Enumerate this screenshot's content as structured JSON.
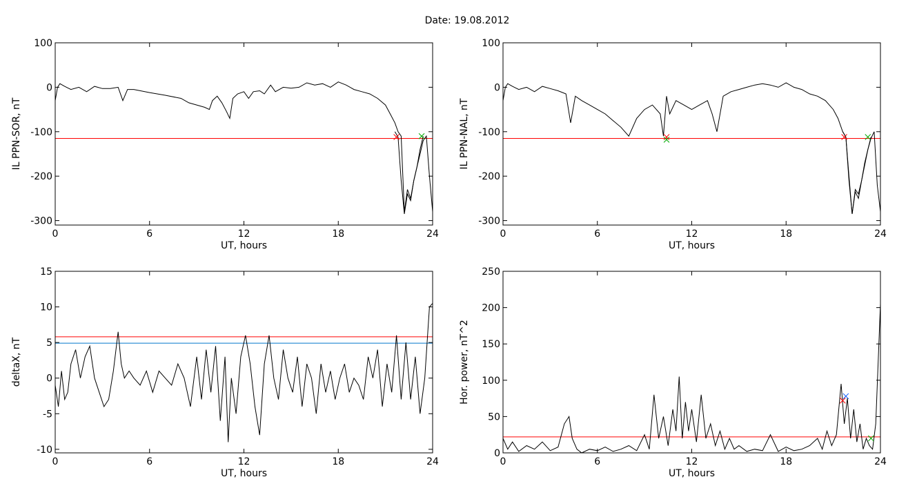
{
  "figure": {
    "title": "Date:  19.08.2012"
  },
  "chart_data": [
    {
      "type": "line",
      "title": "",
      "xlabel": "UT, hours",
      "ylabel": "IL PPN-SOR, nT",
      "xlim": [
        0,
        24
      ],
      "ylim": [
        -310,
        100
      ],
      "xticks": [
        0,
        6,
        12,
        18,
        24
      ],
      "yticks": [
        100,
        0,
        -100,
        -200,
        -300
      ],
      "series": [
        {
          "color": "#000000",
          "x": [
            0,
            0.15,
            0.3,
            0.6,
            1.0,
            1.5,
            2.0,
            2.5,
            3.0,
            3.5,
            4.0,
            4.3,
            4.6,
            5.0,
            6.0,
            7.0,
            8.0,
            8.5,
            9.0,
            9.5,
            9.8,
            10.0,
            10.3,
            10.6,
            10.9,
            11.1,
            11.3,
            11.6,
            12.0,
            12.3,
            12.6,
            13.0,
            13.3,
            13.7,
            14.0,
            14.5,
            15.0,
            15.5,
            16.0,
            16.5,
            17.0,
            17.5,
            18.0,
            18.5,
            19.0,
            19.5,
            20.0,
            20.5,
            21.0,
            21.3,
            21.6,
            21.8,
            22.0,
            22.2,
            22.4,
            22.6,
            22.8,
            23.0,
            23.2,
            23.4,
            23.6,
            23.8,
            24.0
          ],
          "y": [
            -30,
            0,
            8,
            2,
            -5,
            0,
            -10,
            2,
            -3,
            -3,
            0,
            -30,
            -5,
            -5,
            -12,
            -18,
            -25,
            -35,
            -40,
            -45,
            -50,
            -30,
            -20,
            -35,
            -55,
            -70,
            -25,
            -15,
            -10,
            -25,
            -10,
            -8,
            -15,
            5,
            -10,
            0,
            -2,
            0,
            10,
            5,
            8,
            0,
            12,
            5,
            -5,
            -10,
            -15,
            -25,
            -40,
            -60,
            -80,
            -100,
            -110,
            -280,
            -230,
            -250,
            -210,
            -180,
            -150,
            -120,
            -110,
            -200,
            -280
          ]
        },
        {
          "name": "",
          "color": "#0055cc",
          "x": [
            21.6,
            21.8,
            22.0,
            22.2,
            22.4,
            22.6,
            22.8,
            23.0,
            23.2,
            23.4
          ],
          "y": [
            -100,
            -112,
            -210,
            -285,
            -240,
            -255,
            -210,
            -180,
            -140,
            -110
          ]
        }
      ],
      "threshold_lines": [
        {
          "y": -115,
          "color": "#ff0000"
        }
      ],
      "markers": [
        {
          "x": 21.7,
          "y": -112,
          "color": "#ff0000"
        },
        {
          "x": 23.3,
          "y": -110,
          "color": "#00aa00"
        }
      ]
    },
    {
      "type": "line",
      "title": "",
      "xlabel": "UT, hours",
      "ylabel": "IL PPN-NAL, nT",
      "xlim": [
        0,
        24
      ],
      "ylim": [
        -310,
        100
      ],
      "xticks": [
        0,
        6,
        12,
        18,
        24
      ],
      "yticks": [
        100,
        0,
        -100,
        -200,
        -300
      ],
      "series": [
        {
          "color": "#000000",
          "x": [
            0,
            0.15,
            0.3,
            0.6,
            1.0,
            1.5,
            2.0,
            2.5,
            3.0,
            3.5,
            4.0,
            4.3,
            4.6,
            5.0,
            5.5,
            6.0,
            6.5,
            7.0,
            7.5,
            8.0,
            8.5,
            9.0,
            9.5,
            10.0,
            10.2,
            10.4,
            10.6,
            11.0,
            11.5,
            12.0,
            12.5,
            13.0,
            13.3,
            13.6,
            14.0,
            14.5,
            15.0,
            15.5,
            16.0,
            16.5,
            17.0,
            17.5,
            18.0,
            18.5,
            19.0,
            19.5,
            20.0,
            20.5,
            21.0,
            21.3,
            21.6,
            21.8,
            22.0,
            22.2,
            22.4,
            22.6,
            22.8,
            23.0,
            23.2,
            23.4,
            23.6,
            23.8,
            24.0
          ],
          "y": [
            -30,
            0,
            8,
            2,
            -5,
            0,
            -10,
            2,
            -3,
            -8,
            -15,
            -80,
            -20,
            -30,
            -40,
            -50,
            -60,
            -75,
            -90,
            -110,
            -70,
            -50,
            -40,
            -60,
            -110,
            -20,
            -60,
            -30,
            -40,
            -50,
            -40,
            -30,
            -60,
            -100,
            -20,
            -10,
            -5,
            0,
            5,
            8,
            5,
            0,
            10,
            0,
            -5,
            -15,
            -20,
            -30,
            -50,
            -70,
            -100,
            -112,
            -200,
            -285,
            -230,
            -240,
            -210,
            -170,
            -140,
            -115,
            -100,
            -220,
            -280
          ]
        },
        {
          "name": "",
          "color": "#0055cc",
          "x": [
            21.6,
            21.8,
            22.0,
            22.2,
            22.4,
            22.6,
            22.8,
            23.0,
            23.2,
            23.4
          ],
          "y": [
            -100,
            -112,
            -210,
            -285,
            -235,
            -250,
            -210,
            -175,
            -140,
            -112
          ]
        }
      ],
      "threshold_lines": [
        {
          "y": -115,
          "color": "#ff0000"
        }
      ],
      "markers": [
        {
          "x": 10.4,
          "y": -112,
          "color": "#ff0000"
        },
        {
          "x": 10.4,
          "y": -118,
          "color": "#00aa00"
        },
        {
          "x": 21.7,
          "y": -112,
          "color": "#ff0000"
        },
        {
          "x": 23.2,
          "y": -112,
          "color": "#00aa00"
        }
      ]
    },
    {
      "type": "line",
      "title": "",
      "xlabel": "UT, hours",
      "ylabel": "deltaX, nT",
      "xlim": [
        0,
        24
      ],
      "ylim": [
        -10.5,
        15
      ],
      "xticks": [
        0,
        6,
        12,
        18,
        24
      ],
      "yticks": [
        15,
        10,
        5,
        0,
        -5,
        -10
      ],
      "series": [
        {
          "color": "#000000",
          "x": [
            0,
            0.2,
            0.4,
            0.6,
            0.8,
            1.0,
            1.3,
            1.6,
            1.9,
            2.2,
            2.5,
            2.8,
            3.1,
            3.4,
            3.7,
            4.0,
            4.2,
            4.4,
            4.7,
            5.0,
            5.4,
            5.8,
            6.2,
            6.6,
            7.0,
            7.4,
            7.8,
            8.2,
            8.6,
            9.0,
            9.3,
            9.6,
            9.9,
            10.2,
            10.5,
            10.8,
            11.0,
            11.2,
            11.5,
            11.8,
            12.1,
            12.4,
            12.7,
            13.0,
            13.3,
            13.6,
            13.9,
            14.2,
            14.5,
            14.8,
            15.1,
            15.4,
            15.7,
            16.0,
            16.3,
            16.6,
            16.9,
            17.2,
            17.5,
            17.8,
            18.1,
            18.4,
            18.7,
            19.0,
            19.3,
            19.6,
            19.9,
            20.2,
            20.5,
            20.8,
            21.1,
            21.4,
            21.7,
            22.0,
            22.3,
            22.6,
            22.9,
            23.2,
            23.5,
            23.8,
            24.0
          ],
          "y": [
            -1,
            -4,
            1,
            -3,
            -2,
            2,
            4,
            0,
            3,
            4.5,
            0,
            -2,
            -4,
            -3,
            1,
            6.5,
            2,
            0,
            1,
            0,
            -1,
            1,
            -2,
            1,
            0,
            -1,
            2,
            0,
            -4,
            3,
            -3,
            4,
            -2,
            4.5,
            -6,
            3,
            -9,
            0,
            -5,
            3,
            6,
            2,
            -4,
            -8,
            2,
            6,
            0,
            -3,
            4,
            0,
            -2,
            3,
            -4,
            2,
            0,
            -5,
            2,
            -2,
            1,
            -3,
            0,
            2,
            -2,
            0,
            -1,
            -3,
            3,
            0,
            4,
            -4,
            2,
            -2,
            6,
            -3,
            5,
            -3,
            3,
            -5,
            0,
            10,
            10.5
          ]
        }
      ],
      "threshold_lines": [
        {
          "y": 5.8,
          "color": "#ff0000"
        },
        {
          "y": 4.9,
          "color": "#0077cc"
        }
      ],
      "markers": []
    },
    {
      "type": "line",
      "title": "",
      "xlabel": "UT, hours",
      "ylabel": "Hor. power, nT^2",
      "xlim": [
        0,
        24
      ],
      "ylim": [
        0,
        250
      ],
      "xticks": [
        0,
        6,
        12,
        18,
        24
      ],
      "yticks": [
        250,
        200,
        150,
        100,
        50,
        0
      ],
      "series": [
        {
          "color": "#000000",
          "x": [
            0,
            0.3,
            0.6,
            1.0,
            1.5,
            2.0,
            2.5,
            3.0,
            3.5,
            3.9,
            4.2,
            4.4,
            4.7,
            5.0,
            5.5,
            6.0,
            6.5,
            7.0,
            7.5,
            8.0,
            8.5,
            9.0,
            9.3,
            9.6,
            9.9,
            10.2,
            10.5,
            10.8,
            11.0,
            11.2,
            11.4,
            11.6,
            11.8,
            12.0,
            12.3,
            12.6,
            12.9,
            13.2,
            13.5,
            13.8,
            14.1,
            14.4,
            14.7,
            15.0,
            15.5,
            16.0,
            16.5,
            17.0,
            17.5,
            18.0,
            18.5,
            19.0,
            19.5,
            20.0,
            20.3,
            20.6,
            20.9,
            21.2,
            21.5,
            21.7,
            21.9,
            22.1,
            22.3,
            22.5,
            22.7,
            22.9,
            23.1,
            23.3,
            23.5,
            23.7,
            24.0
          ],
          "y": [
            20,
            5,
            15,
            2,
            10,
            5,
            15,
            3,
            8,
            40,
            50,
            20,
            5,
            0,
            5,
            3,
            8,
            2,
            5,
            10,
            3,
            25,
            5,
            80,
            20,
            50,
            10,
            60,
            30,
            105,
            20,
            70,
            30,
            60,
            15,
            80,
            20,
            40,
            10,
            30,
            5,
            20,
            5,
            10,
            2,
            5,
            3,
            25,
            2,
            8,
            3,
            5,
            10,
            20,
            5,
            30,
            10,
            25,
            95,
            40,
            75,
            20,
            60,
            15,
            40,
            5,
            20,
            10,
            5,
            40,
            205
          ]
        }
      ],
      "threshold_lines": [
        {
          "y": 22,
          "color": "#ff0000"
        }
      ],
      "markers": [
        {
          "x": 21.6,
          "y": 72,
          "color": "#ff0000"
        },
        {
          "x": 21.8,
          "y": 78,
          "color": "#0055ff"
        },
        {
          "x": 23.4,
          "y": 20,
          "color": "#00aa00"
        }
      ]
    }
  ]
}
